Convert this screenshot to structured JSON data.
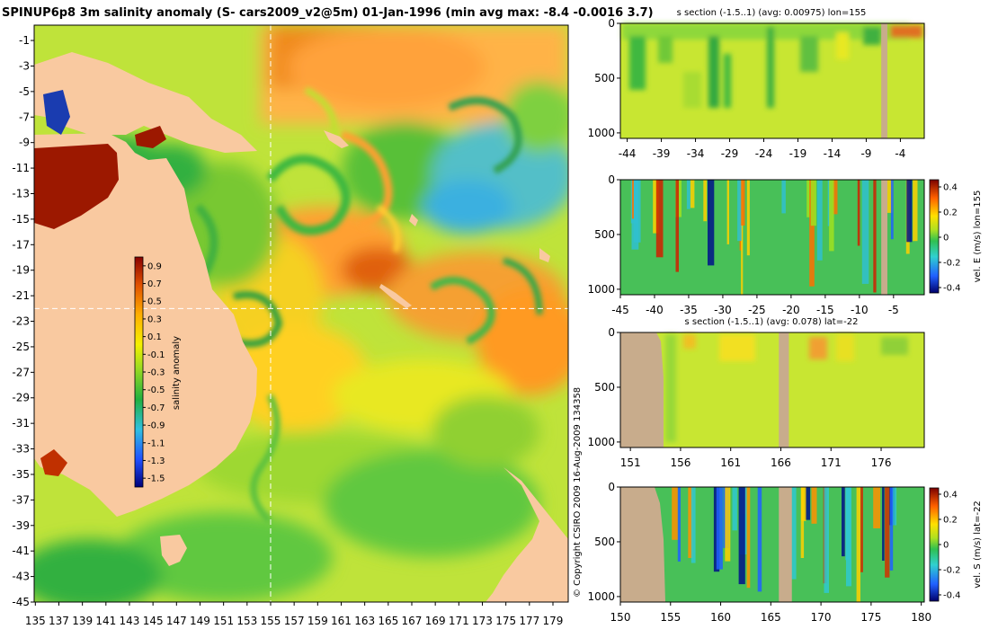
{
  "main_title": "SPINUP6p8 3m salinity anomaly (S- cars2009_v2@5m) 01-Jan-1996 (min avg max: -8.4 -0.0016 3.7)",
  "copyright": "© Copyright CSIRO 2009  16-Aug-2009 134358",
  "colors": {
    "land": "#f9c9a0",
    "section_land": "#c8ac8c",
    "dashed_line": "#ffffff",
    "background": "#ffffff"
  },
  "chart_data": [
    {
      "type": "heatmap",
      "id": "map",
      "title": "",
      "x_ticks": [
        "135",
        "137",
        "139",
        "141",
        "143",
        "145",
        "147",
        "149",
        "151",
        "153",
        "155",
        "157",
        "159",
        "161",
        "163",
        "165",
        "167",
        "169",
        "171",
        "173",
        "175",
        "177",
        "179"
      ],
      "y_ticks": [
        "-1",
        "-3",
        "-5",
        "-7",
        "-9",
        "-11",
        "-13",
        "-15",
        "-17",
        "-19",
        "-21",
        "-23",
        "-25",
        "-27",
        "-29",
        "-31",
        "-33",
        "-35",
        "-37",
        "-39",
        "-41",
        "-43",
        "-45"
      ],
      "xlim": [
        134.9,
        180.3
      ],
      "ylim": [
        -45,
        0.2
      ],
      "reference_lines": {
        "lon": 155,
        "lat": -22
      },
      "colorbar": {
        "label": "salinity anomaly",
        "ticks": [
          "0.9",
          "0.7",
          "0.5",
          "0.3",
          "0.1",
          "-0.1",
          "-0.3",
          "-0.5",
          "-0.7",
          "-0.9",
          "-1.1",
          "-1.3",
          "-1.5"
        ],
        "range": [
          -1.6,
          1.0
        ]
      }
    },
    {
      "type": "heatmap",
      "id": "s-lon155",
      "title": "s section (-1.5..1) (avg: 0.00975) lon=155",
      "x_ticks": [
        "-44",
        "-39",
        "-34",
        "-29",
        "-24",
        "-19",
        "-14",
        "-9",
        "-4"
      ],
      "y_ticks": [
        "0",
        "500",
        "1000"
      ],
      "xlim": [
        -45,
        -0.5
      ],
      "ylim": [
        1050,
        0
      ],
      "land_x": [
        -6.8,
        -5.9
      ]
    },
    {
      "type": "heatmap",
      "id": "v-lon155",
      "title": "",
      "x_ticks": [
        "-45",
        "-40",
        "-35",
        "-30",
        "-25",
        "-20",
        "-15",
        "-10",
        "-5"
      ],
      "y_ticks": [
        "0",
        "500",
        "1000"
      ],
      "xlim": [
        -45,
        -0.5
      ],
      "ylim": [
        1050,
        0
      ],
      "land_x": [
        -6.8,
        -5.9
      ],
      "colorbar": {
        "label": "vel. E (m/s) lon=155",
        "ticks": [
          "0.4",
          "0.2",
          "0",
          "-0.2",
          "-0.4"
        ],
        "range": [
          -0.45,
          0.45
        ]
      }
    },
    {
      "type": "heatmap",
      "id": "s-lat22",
      "title": "s section (-1.5..1) (avg: 0.078) lat=-22",
      "x_ticks": [
        "151",
        "156",
        "161",
        "166",
        "171",
        "176"
      ],
      "y_ticks": [
        "0",
        "500",
        "1000"
      ],
      "xlim": [
        150,
        180.3
      ],
      "ylim": [
        1050,
        0
      ],
      "land_x": [
        165.8,
        166.8
      ]
    },
    {
      "type": "heatmap",
      "id": "v-lat22",
      "title": "",
      "x_ticks": [
        "150",
        "155",
        "160",
        "165",
        "170",
        "175",
        "180"
      ],
      "y_ticks": [
        "0",
        "500",
        "1000"
      ],
      "xlim": [
        150,
        180.3
      ],
      "ylim": [
        1050,
        0
      ],
      "land_x": [
        165.8,
        167.1
      ],
      "colorbar": {
        "label": "vel. S (m/s) lat=-22",
        "ticks": [
          "0.4",
          "0.2",
          "0",
          "-0.2",
          "-0.4"
        ],
        "range": [
          -0.45,
          0.45
        ]
      }
    }
  ]
}
